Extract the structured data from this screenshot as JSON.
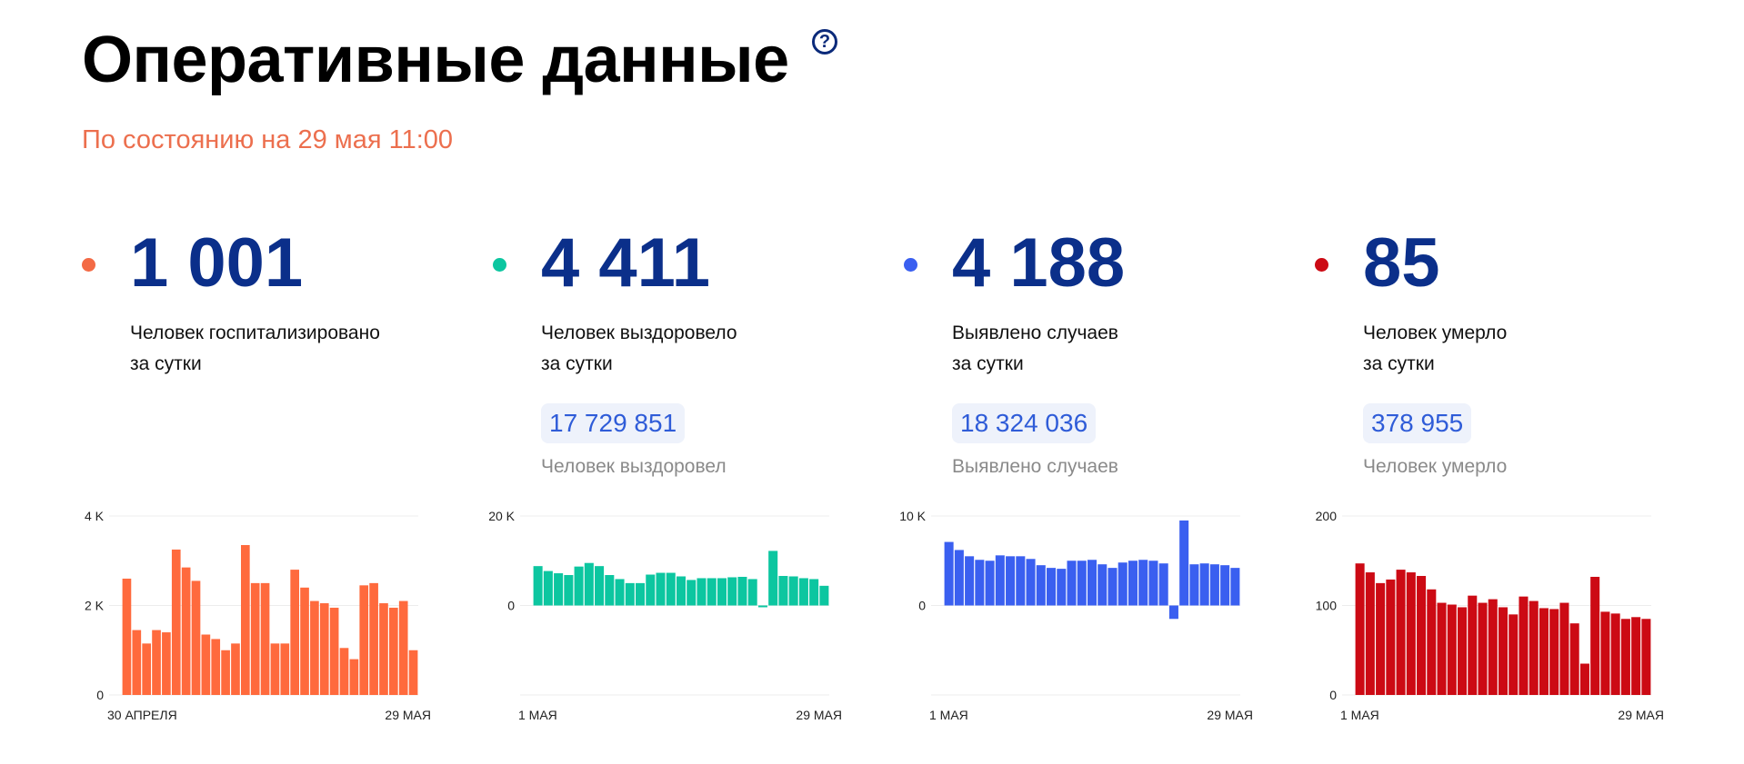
{
  "header": {
    "title": "Оперативные данные",
    "help": "?",
    "subtitle": "По состоянию на 29 мая 11:00"
  },
  "stats": [
    {
      "id": "hospitalized",
      "value": "1 001",
      "desc1": "Человек госпитализировано",
      "desc2": "за сутки",
      "color": "#ff6a3d",
      "dot_color": "#f36a45"
    },
    {
      "id": "recovered",
      "value": "4 411",
      "desc1": "Человек выздоровело",
      "desc2": "за сутки",
      "total": "17 729 851",
      "total_label": "Человек выздоровел",
      "color": "#0cc6a0",
      "dot_color": "#0cc6a0"
    },
    {
      "id": "cases",
      "value": "4 188",
      "desc1": "Выявлено случаев",
      "desc2": "за сутки",
      "total": "18 324 036",
      "total_label": "Выявлено случаев",
      "color": "#3a5ff0",
      "dot_color": "#3a5ff0"
    },
    {
      "id": "deaths",
      "value": "85",
      "desc1": "Человек умерло",
      "desc2": "за сутки",
      "total": "378 955",
      "total_label": "Человек умерло",
      "color": "#cc0a14",
      "dot_color": "#cc0a14"
    }
  ],
  "chart_data": [
    {
      "type": "bar",
      "series": [
        {
          "values": [
            2600,
            1450,
            1150,
            1450,
            1400,
            3250,
            2850,
            2550,
            1350,
            1250,
            1000,
            1150,
            3350,
            2500,
            2500,
            1150,
            1150,
            2800,
            2400,
            2100,
            2050,
            1950,
            1050,
            800,
            2450,
            2500,
            2050,
            1950,
            2100,
            1000
          ]
        }
      ],
      "ylim": [
        0,
        4000
      ],
      "ytick_values": [
        0,
        2000,
        4000
      ],
      "ytick_labels": [
        "0",
        "2 K",
        "4 K"
      ],
      "x_start_label": "30 АПРЕЛЯ",
      "x_end_label": "29 МАЯ",
      "grid": true
    },
    {
      "type": "bar",
      "series": [
        {
          "values": [
            8800,
            7700,
            7200,
            6800,
            8700,
            9500,
            8800,
            6800,
            5900,
            5000,
            5000,
            6900,
            7300,
            7300,
            6500,
            5700,
            6100,
            6100,
            6100,
            6300,
            6400,
            5900,
            -400,
            12200,
            6600,
            6500,
            6100,
            5900,
            4400
          ]
        }
      ],
      "ylim": [
        -20000,
        20000
      ],
      "ytick_values": [
        0,
        20000
      ],
      "ytick_labels": [
        "0",
        "20 K"
      ],
      "x_start_label": "1 МАЯ",
      "x_end_label": "29 МАЯ",
      "grid": true
    },
    {
      "type": "bar",
      "series": [
        {
          "values": [
            7100,
            6200,
            5500,
            5100,
            5000,
            5600,
            5500,
            5500,
            5200,
            4500,
            4200,
            4100,
            5000,
            5000,
            5100,
            4600,
            4200,
            4800,
            5000,
            5100,
            5000,
            4700,
            -1500,
            9500,
            4600,
            4700,
            4600,
            4500,
            4200
          ]
        }
      ],
      "ylim": [
        -10000,
        10000
      ],
      "ytick_values": [
        0,
        10000
      ],
      "ytick_labels": [
        "0",
        "10 K"
      ],
      "x_start_label": "1 МАЯ",
      "x_end_label": "29 МАЯ",
      "grid": true
    },
    {
      "type": "bar",
      "series": [
        {
          "values": [
            147,
            137,
            125,
            129,
            140,
            137,
            133,
            118,
            103,
            101,
            98,
            111,
            103,
            107,
            98,
            90,
            110,
            105,
            97,
            96,
            103,
            80,
            35,
            132,
            93,
            91,
            85,
            87,
            85
          ]
        }
      ],
      "ylim": [
        0,
        200
      ],
      "ytick_values": [
        0,
        100,
        200
      ],
      "ytick_labels": [
        "0",
        "100",
        "200"
      ],
      "x_start_label": "1 МАЯ",
      "x_end_label": "29 МАЯ",
      "grid": true
    }
  ]
}
